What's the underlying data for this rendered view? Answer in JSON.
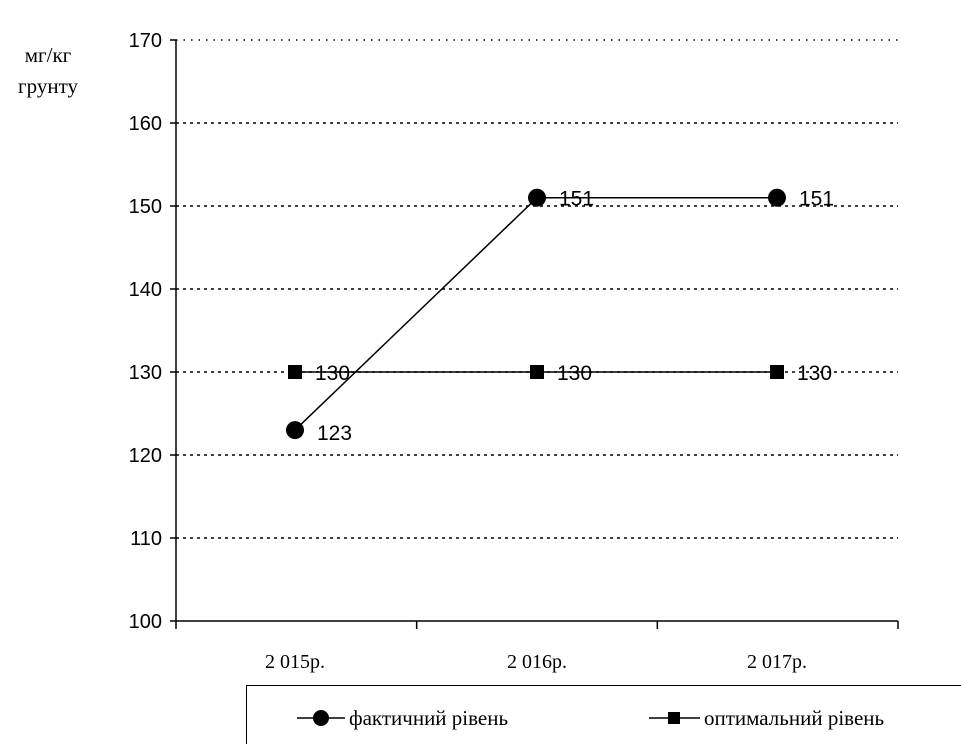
{
  "chart_data": {
    "type": "line",
    "ylabel_line1": "мг/кг",
    "ylabel_line2": "грунту",
    "categories": [
      "2 015р.",
      "2 016р.",
      "2 017р."
    ],
    "ylim": [
      100,
      170
    ],
    "yticks": [
      100,
      110,
      120,
      130,
      140,
      150,
      160,
      170
    ],
    "grid": "horizontal dotted",
    "legend_position": "bottom",
    "series": [
      {
        "name": "фактичний рівень",
        "marker": "circle",
        "values": [
          123,
          151,
          151
        ],
        "labels": [
          "123",
          "151",
          "151"
        ]
      },
      {
        "name": "оптимальний рівень",
        "marker": "square",
        "values": [
          130,
          130,
          130
        ],
        "labels": [
          "130",
          "130",
          "130"
        ]
      }
    ]
  }
}
